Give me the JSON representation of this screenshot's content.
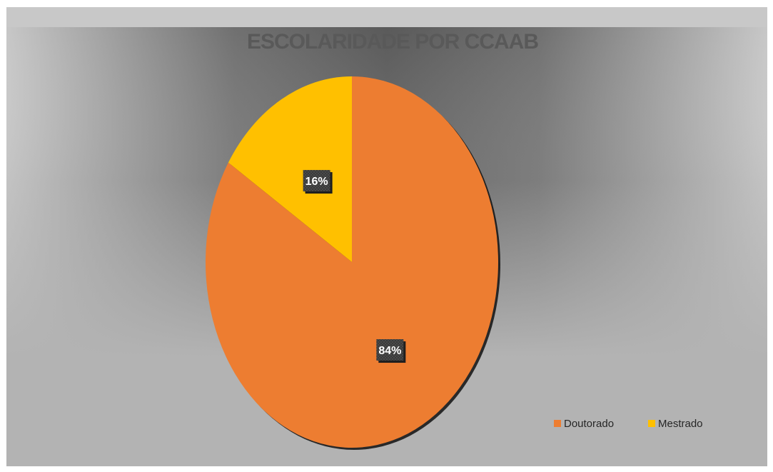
{
  "chart_data": {
    "type": "pie",
    "title": "ESCOLARIDADE POR CCAAB",
    "categories": [
      "Doutorado",
      "Mestrado"
    ],
    "values": [
      84,
      16
    ],
    "data_labels": [
      "84%",
      "16%"
    ],
    "colors": [
      "#ed7d31",
      "#ffc000"
    ],
    "legend": {
      "position": "bottom-right",
      "entries": [
        "Doutorado",
        "Mestrado"
      ]
    },
    "start_angle": "12 o'clock",
    "direction": "clockwise"
  }
}
